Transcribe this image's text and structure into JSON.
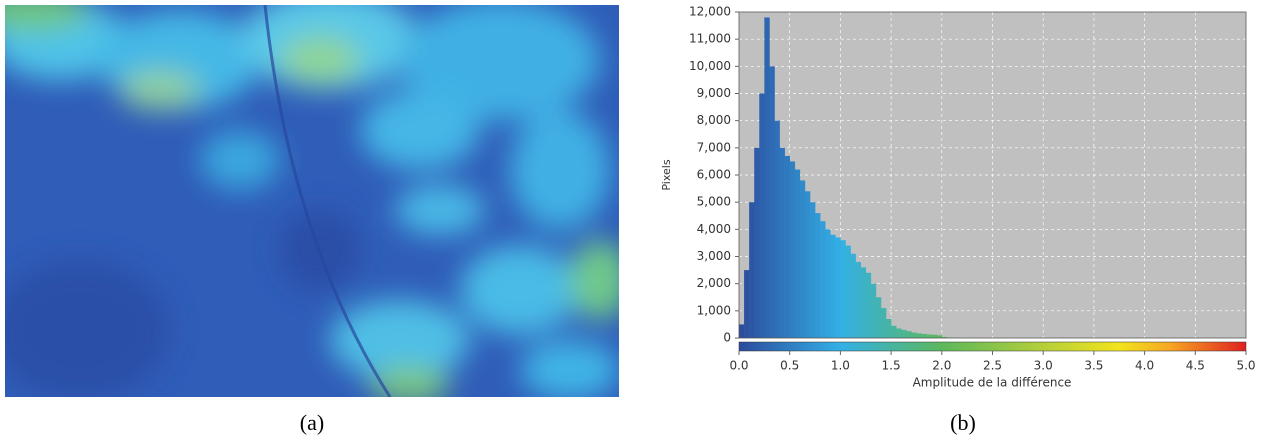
{
  "panels": {
    "a": "(a)",
    "b": "(b)"
  },
  "chart_data": {
    "type": "histogram",
    "xlabel": "Amplitude de la différence",
    "ylabel": "Pixels",
    "bins": [
      0,
      0.05,
      0.1,
      0.15,
      0.2,
      0.25,
      0.3,
      0.35,
      0.4,
      0.45,
      0.5,
      0.55,
      0.6,
      0.65,
      0.7,
      0.75,
      0.8,
      0.85,
      0.9,
      0.95,
      1,
      1.05,
      1.1,
      1.15,
      1.2,
      1.25,
      1.3,
      1.35,
      1.4,
      1.45,
      1.5,
      1.55,
      1.6,
      1.65,
      1.7,
      1.75,
      1.8,
      1.85,
      1.9,
      1.95,
      2,
      2.05,
      2.1,
      2.15,
      2.2,
      2.25,
      2.3,
      2.35,
      2.4,
      2.45,
      2.5
    ],
    "counts": [
      500,
      2500,
      5000,
      7000,
      9000,
      11800,
      10000,
      8000,
      7000,
      6700,
      6500,
      6200,
      5800,
      5400,
      5000,
      4600,
      4300,
      4000,
      3800,
      3700,
      3600,
      3400,
      3100,
      2800,
      2600,
      2400,
      2000,
      1500,
      1100,
      700,
      450,
      350,
      300,
      250,
      200,
      170,
      150,
      130,
      120,
      100,
      40,
      20,
      10,
      5,
      3,
      2,
      1,
      1,
      0,
      0
    ],
    "xlim": [
      0,
      5
    ],
    "ylim": [
      0,
      12000
    ],
    "xticks": [
      {
        "value": 0,
        "label": "0.0"
      },
      0.5,
      {
        "value": 1,
        "label": "1.0"
      },
      1.5,
      {
        "value": 2,
        "label": "2.0"
      },
      2.5,
      {
        "value": 3,
        "label": "3.0"
      },
      3.5,
      {
        "value": 4,
        "label": "4.0"
      },
      4.5,
      {
        "value": 5,
        "label": "5.0"
      }
    ],
    "yticks": [
      0,
      {
        "value": 1000,
        "label": "1,000"
      },
      {
        "value": 2000,
        "label": "2,000"
      },
      {
        "value": 3000,
        "label": "3,000"
      },
      {
        "value": 4000,
        "label": "4,000"
      },
      {
        "value": 5000,
        "label": "5,000"
      },
      {
        "value": 6000,
        "label": "6,000"
      },
      {
        "value": 7000,
        "label": "7,000"
      },
      {
        "value": 8000,
        "label": "8,000"
      },
      {
        "value": 9000,
        "label": "9,000"
      },
      {
        "value": 10000,
        "label": "10,000"
      },
      {
        "value": 11000,
        "label": "11,000"
      },
      {
        "value": 12000,
        "label": "12,000"
      }
    ],
    "grid": true,
    "colormap": [
      "#2c4a9c",
      "#33b0e6",
      "#5cb85c",
      "#b5cf3a",
      "#f6a623",
      "#e02020"
    ]
  }
}
